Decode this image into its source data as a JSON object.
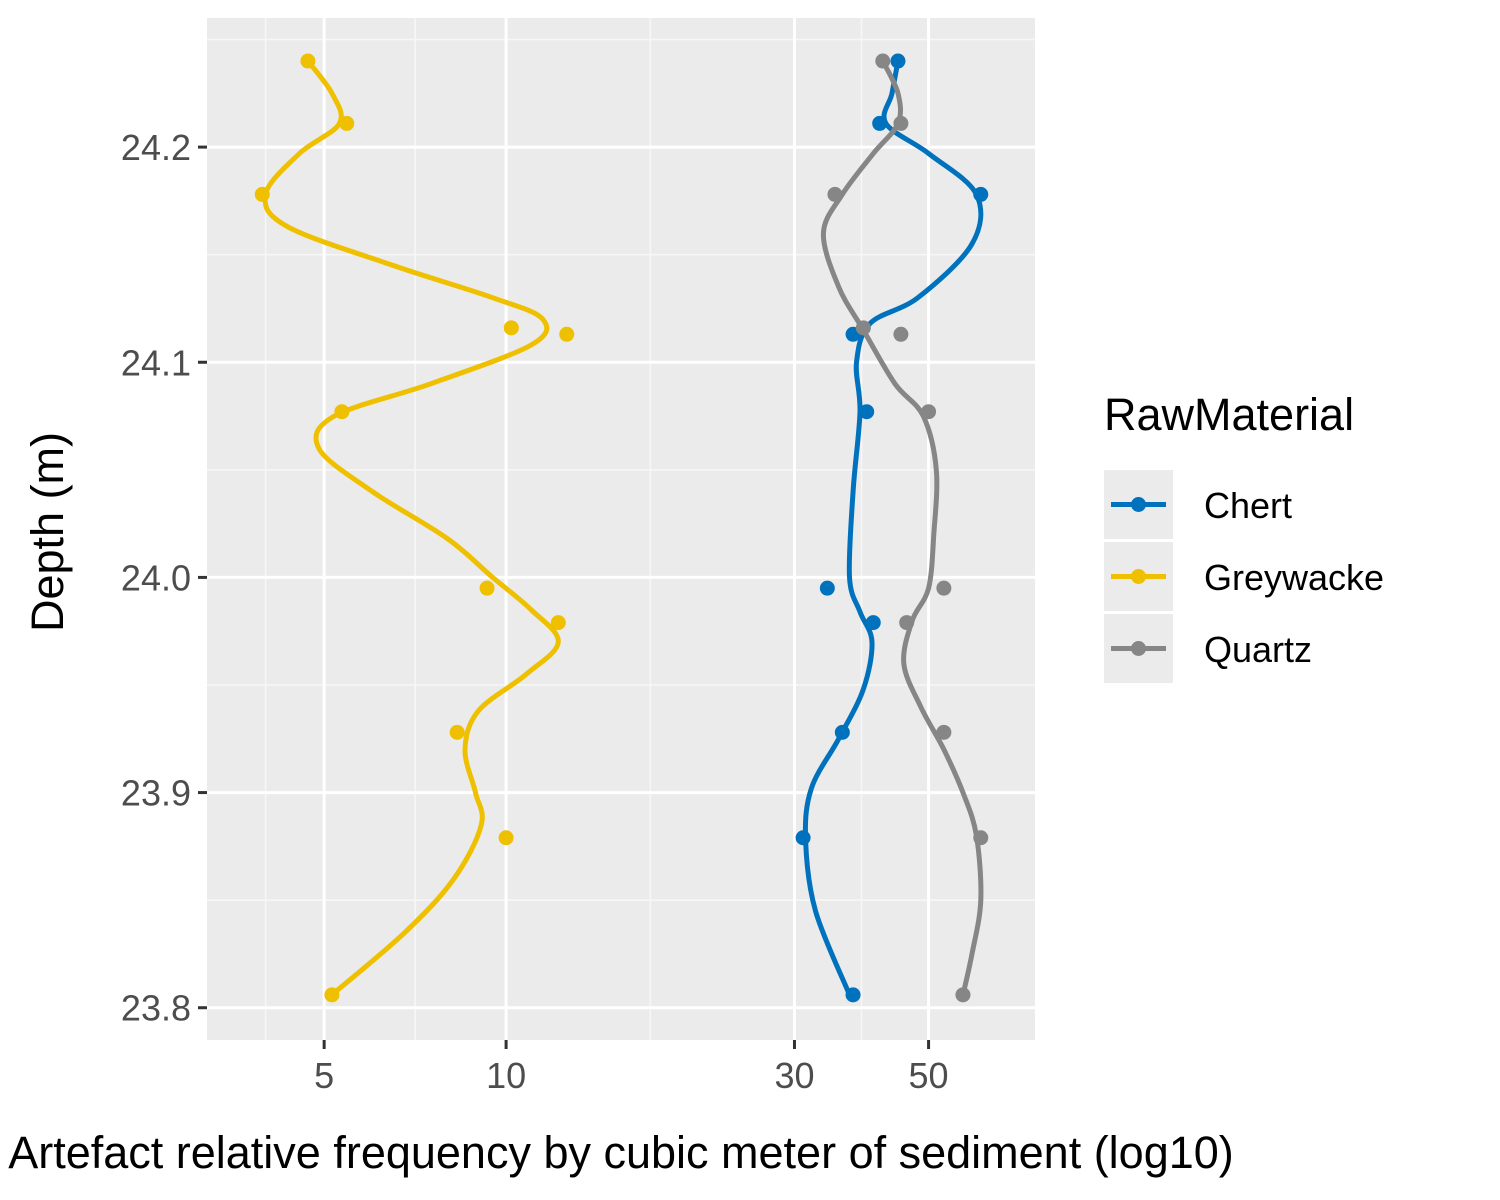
{
  "chart_data": {
    "type": "line",
    "title": "",
    "xlabel": "Artefact relative frequency by cubic meter of sediment (log10)",
    "ylabel": "Depth (m)",
    "x_scale": "log10",
    "xlim": [
      3.2,
      75
    ],
    "ylim": [
      23.785,
      24.26
    ],
    "x_ticks": [
      5,
      10,
      30,
      50
    ],
    "x_tick_labels": [
      "5",
      "10",
      "30",
      "50"
    ],
    "y_ticks": [
      23.8,
      23.9,
      24.0,
      24.1,
      24.2
    ],
    "y_tick_labels": [
      "23.8",
      "23.9",
      "24.0",
      "24.1",
      "24.2"
    ],
    "grid": true,
    "legend": {
      "title": "RawMaterial",
      "position": "right"
    },
    "series": [
      {
        "name": "Chert",
        "color": "#0072BD",
        "points": [
          [
            44.5,
            24.24
          ],
          [
            41.5,
            24.211
          ],
          [
            61,
            24.178
          ],
          [
            37.5,
            24.113
          ],
          [
            39.5,
            24.077
          ],
          [
            34,
            23.995
          ],
          [
            40.5,
            23.979
          ],
          [
            36,
            23.928
          ],
          [
            31,
            23.879
          ],
          [
            37.5,
            23.806
          ]
        ],
        "smooth": [
          [
            44.5,
            24.24
          ],
          [
            43.5,
            24.225
          ],
          [
            42.5,
            24.211
          ],
          [
            50,
            24.197
          ],
          [
            60,
            24.178
          ],
          [
            59,
            24.155
          ],
          [
            48,
            24.13
          ],
          [
            40,
            24.118
          ],
          [
            38,
            24.1
          ],
          [
            38.5,
            24.077
          ],
          [
            37.5,
            24.04
          ],
          [
            37,
            24.0
          ],
          [
            38.5,
            23.984
          ],
          [
            40.3,
            23.97
          ],
          [
            39,
            23.948
          ],
          [
            35.5,
            23.925
          ],
          [
            32,
            23.902
          ],
          [
            31.3,
            23.878
          ],
          [
            32.5,
            23.845
          ],
          [
            37,
            23.806
          ]
        ]
      },
      {
        "name": "Greywacke",
        "color": "#EFC000",
        "points": [
          [
            4.7,
            24.24
          ],
          [
            5.45,
            24.211
          ],
          [
            3.95,
            24.178
          ],
          [
            10.2,
            24.116
          ],
          [
            12.6,
            24.113
          ],
          [
            5.35,
            24.077
          ],
          [
            9.3,
            23.995
          ],
          [
            12.2,
            23.979
          ],
          [
            8.3,
            23.928
          ],
          [
            10,
            23.879
          ],
          [
            5.15,
            23.806
          ]
        ],
        "smooth": [
          [
            4.7,
            24.24
          ],
          [
            5.15,
            24.225
          ],
          [
            5.3,
            24.211
          ],
          [
            4.55,
            24.197
          ],
          [
            4.0,
            24.178
          ],
          [
            4.35,
            24.163
          ],
          [
            6.5,
            24.145
          ],
          [
            9.5,
            24.13
          ],
          [
            11.5,
            24.12
          ],
          [
            11.0,
            24.108
          ],
          [
            7.5,
            24.09
          ],
          [
            5.2,
            24.075
          ],
          [
            4.9,
            24.06
          ],
          [
            6.0,
            24.04
          ],
          [
            8.0,
            24.018
          ],
          [
            9.5,
            24.0
          ],
          [
            11.0,
            23.985
          ],
          [
            12.2,
            23.97
          ],
          [
            10.8,
            23.955
          ],
          [
            9.0,
            23.938
          ],
          [
            8.55,
            23.92
          ],
          [
            8.9,
            23.9
          ],
          [
            9.1,
            23.885
          ],
          [
            8.2,
            23.86
          ],
          [
            6.8,
            23.835
          ],
          [
            5.15,
            23.806
          ]
        ]
      },
      {
        "name": "Quartz",
        "color": "#868686",
        "points": [
          [
            42,
            24.24
          ],
          [
            45,
            24.211
          ],
          [
            35,
            24.178
          ],
          [
            39,
            24.116
          ],
          [
            45,
            24.113
          ],
          [
            50,
            24.077
          ],
          [
            53,
            23.995
          ],
          [
            46,
            23.979
          ],
          [
            53,
            23.928
          ],
          [
            61,
            23.879
          ],
          [
            57,
            23.806
          ]
        ],
        "smooth": [
          [
            42,
            24.24
          ],
          [
            44.5,
            24.225
          ],
          [
            44.5,
            24.211
          ],
          [
            40.5,
            24.197
          ],
          [
            36,
            24.178
          ],
          [
            33.5,
            24.16
          ],
          [
            35.5,
            24.135
          ],
          [
            39,
            24.115
          ],
          [
            44,
            24.09
          ],
          [
            49,
            24.075
          ],
          [
            51.5,
            24.05
          ],
          [
            51,
            24.02
          ],
          [
            50,
            23.995
          ],
          [
            47,
            23.98
          ],
          [
            45.5,
            23.96
          ],
          [
            48.5,
            23.94
          ],
          [
            53,
            23.92
          ],
          [
            57,
            23.9
          ],
          [
            60,
            23.88
          ],
          [
            61,
            23.85
          ],
          [
            59,
            23.825
          ],
          [
            57,
            23.806
          ]
        ]
      }
    ]
  }
}
